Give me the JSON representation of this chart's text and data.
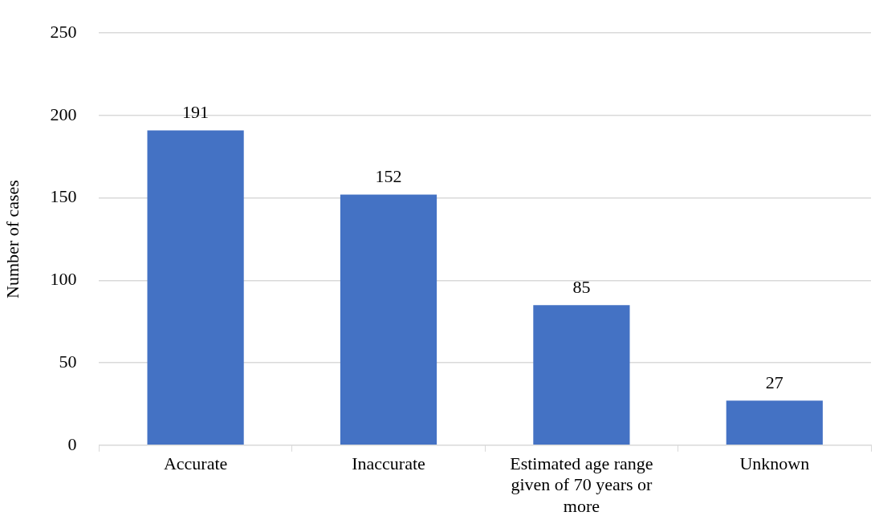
{
  "chart_data": {
    "type": "bar",
    "ylabel": "Number of cases",
    "categories": [
      "Accurate",
      "Inaccurate",
      "Estimated age range given of 70 years or more",
      "Unknown"
    ],
    "values": [
      191,
      152,
      85,
      27
    ],
    "color": "#4472c4",
    "ylim": [
      0,
      250
    ],
    "yticks": [
      0,
      50,
      100,
      150,
      200,
      250
    ],
    "grid": "y",
    "data_labels": true,
    "legend": false
  }
}
